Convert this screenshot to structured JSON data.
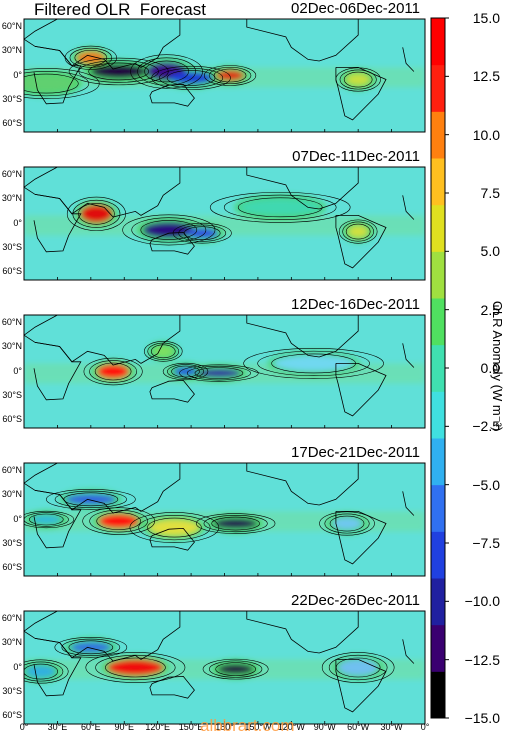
{
  "header": {
    "title": "Filtered OLR  Forecast"
  },
  "panels": [
    {
      "date": "02Dec-06Dec-2011",
      "top": 19,
      "blobs": [
        {
          "lon": 85,
          "lat": 5,
          "rx": 28,
          "ry": 7,
          "c": "#200040"
        },
        {
          "lon": 128,
          "lat": 5,
          "rx": 20,
          "ry": 9,
          "c": "#3a0a8a"
        },
        {
          "lon": 150,
          "lat": -3,
          "rx": 22,
          "ry": 6,
          "c": "#1e3cd8"
        },
        {
          "lon": 60,
          "lat": 22,
          "rx": 14,
          "ry": 6,
          "c": "#f07a1a"
        },
        {
          "lon": 185,
          "lat": 0,
          "rx": 14,
          "ry": 5,
          "c": "#e02010"
        },
        {
          "lon": 300,
          "lat": -5,
          "rx": 12,
          "ry": 6,
          "c": "#c8e040"
        },
        {
          "lon": 20,
          "lat": -10,
          "rx": 30,
          "ry": 8,
          "c": "#60d070"
        }
      ]
    },
    {
      "date": "07Dec-11Dec-2011",
      "top": 167,
      "blobs": [
        {
          "lon": 65,
          "lat": 12,
          "rx": 16,
          "ry": 9,
          "c": "#e01010"
        },
        {
          "lon": 130,
          "lat": -8,
          "rx": 26,
          "ry": 8,
          "c": "#2a0a80"
        },
        {
          "lon": 160,
          "lat": -12,
          "rx": 16,
          "ry": 5,
          "c": "#3050e0"
        },
        {
          "lon": 300,
          "lat": -10,
          "rx": 10,
          "ry": 6,
          "c": "#d0e040"
        },
        {
          "lon": 230,
          "lat": 20,
          "rx": 40,
          "ry": 8,
          "c": "#40d8b0"
        }
      ]
    },
    {
      "date": "12Dec-16Dec-2011",
      "top": 315,
      "blobs": [
        {
          "lon": 80,
          "lat": 0,
          "rx": 16,
          "ry": 7,
          "c": "#ff1010"
        },
        {
          "lon": 145,
          "lat": 0,
          "rx": 12,
          "ry": 4,
          "c": "#2050e0"
        },
        {
          "lon": 175,
          "lat": -2,
          "rx": 22,
          "ry": 4,
          "c": "#3010a0"
        },
        {
          "lon": 125,
          "lat": 25,
          "rx": 10,
          "ry": 5,
          "c": "#80e060"
        },
        {
          "lon": 260,
          "lat": 10,
          "rx": 40,
          "ry": 8,
          "c": "#70d8f0"
        }
      ]
    },
    {
      "date": "17Dec-21Dec-2011",
      "top": 463,
      "blobs": [
        {
          "lon": 85,
          "lat": -2,
          "rx": 20,
          "ry": 7,
          "c": "#ff1010"
        },
        {
          "lon": 190,
          "lat": -5,
          "rx": 22,
          "ry": 5,
          "c": "#200050"
        },
        {
          "lon": 135,
          "lat": -10,
          "rx": 25,
          "ry": 8,
          "c": "#e0e040"
        },
        {
          "lon": 60,
          "lat": 25,
          "rx": 25,
          "ry": 5,
          "c": "#3060e0"
        },
        {
          "lon": 20,
          "lat": 0,
          "rx": 15,
          "ry": 4,
          "c": "#30b8e0"
        },
        {
          "lon": 290,
          "lat": -5,
          "rx": 15,
          "ry": 6,
          "c": "#70c8f0"
        }
      ]
    },
    {
      "date": "22Dec-26Dec-2011",
      "top": 611,
      "blobs": [
        {
          "lon": 100,
          "lat": 0,
          "rx": 28,
          "ry": 8,
          "c": "#f01010"
        },
        {
          "lon": 190,
          "lat": -2,
          "rx": 18,
          "ry": 5,
          "c": "#200040"
        },
        {
          "lon": 60,
          "lat": 25,
          "rx": 20,
          "ry": 5,
          "c": "#3070e0"
        },
        {
          "lon": 15,
          "lat": -5,
          "rx": 15,
          "ry": 6,
          "c": "#30b0e0"
        },
        {
          "lon": 300,
          "lat": 0,
          "rx": 20,
          "ry": 8,
          "c": "#70c0f0"
        }
      ]
    }
  ],
  "y_ticks": [
    "60°N",
    "30°N",
    "0°",
    "30°S",
    "60°S"
  ],
  "x_ticks": [
    "0°",
    "30°E",
    "60°E",
    "90°E",
    "120°E",
    "150°E",
    "180°",
    "150°W",
    "120°W",
    "90°W",
    "60°W",
    "30°W",
    "0°"
  ],
  "colorbar": {
    "title": "OLR Anomaly  (W m⁻²)",
    "ticks": [
      "15.0",
      "12.5",
      "10.0",
      "7.5",
      "5.0",
      "2.5",
      "0.0",
      "−2.5",
      "−5.0",
      "−7.5",
      "−10.0",
      "−12.5",
      "−15.0"
    ],
    "colors": [
      "#000000",
      "#3a0070",
      "#2020a0",
      "#2040e0",
      "#3070f0",
      "#30b0f0",
      "#40e0e0",
      "#40e0b0",
      "#50e060",
      "#a0e040",
      "#e0e020",
      "#ffc020",
      "#ff8010",
      "#ff2010",
      "#ff0000"
    ]
  },
  "watermark": "albbrart.com"
}
